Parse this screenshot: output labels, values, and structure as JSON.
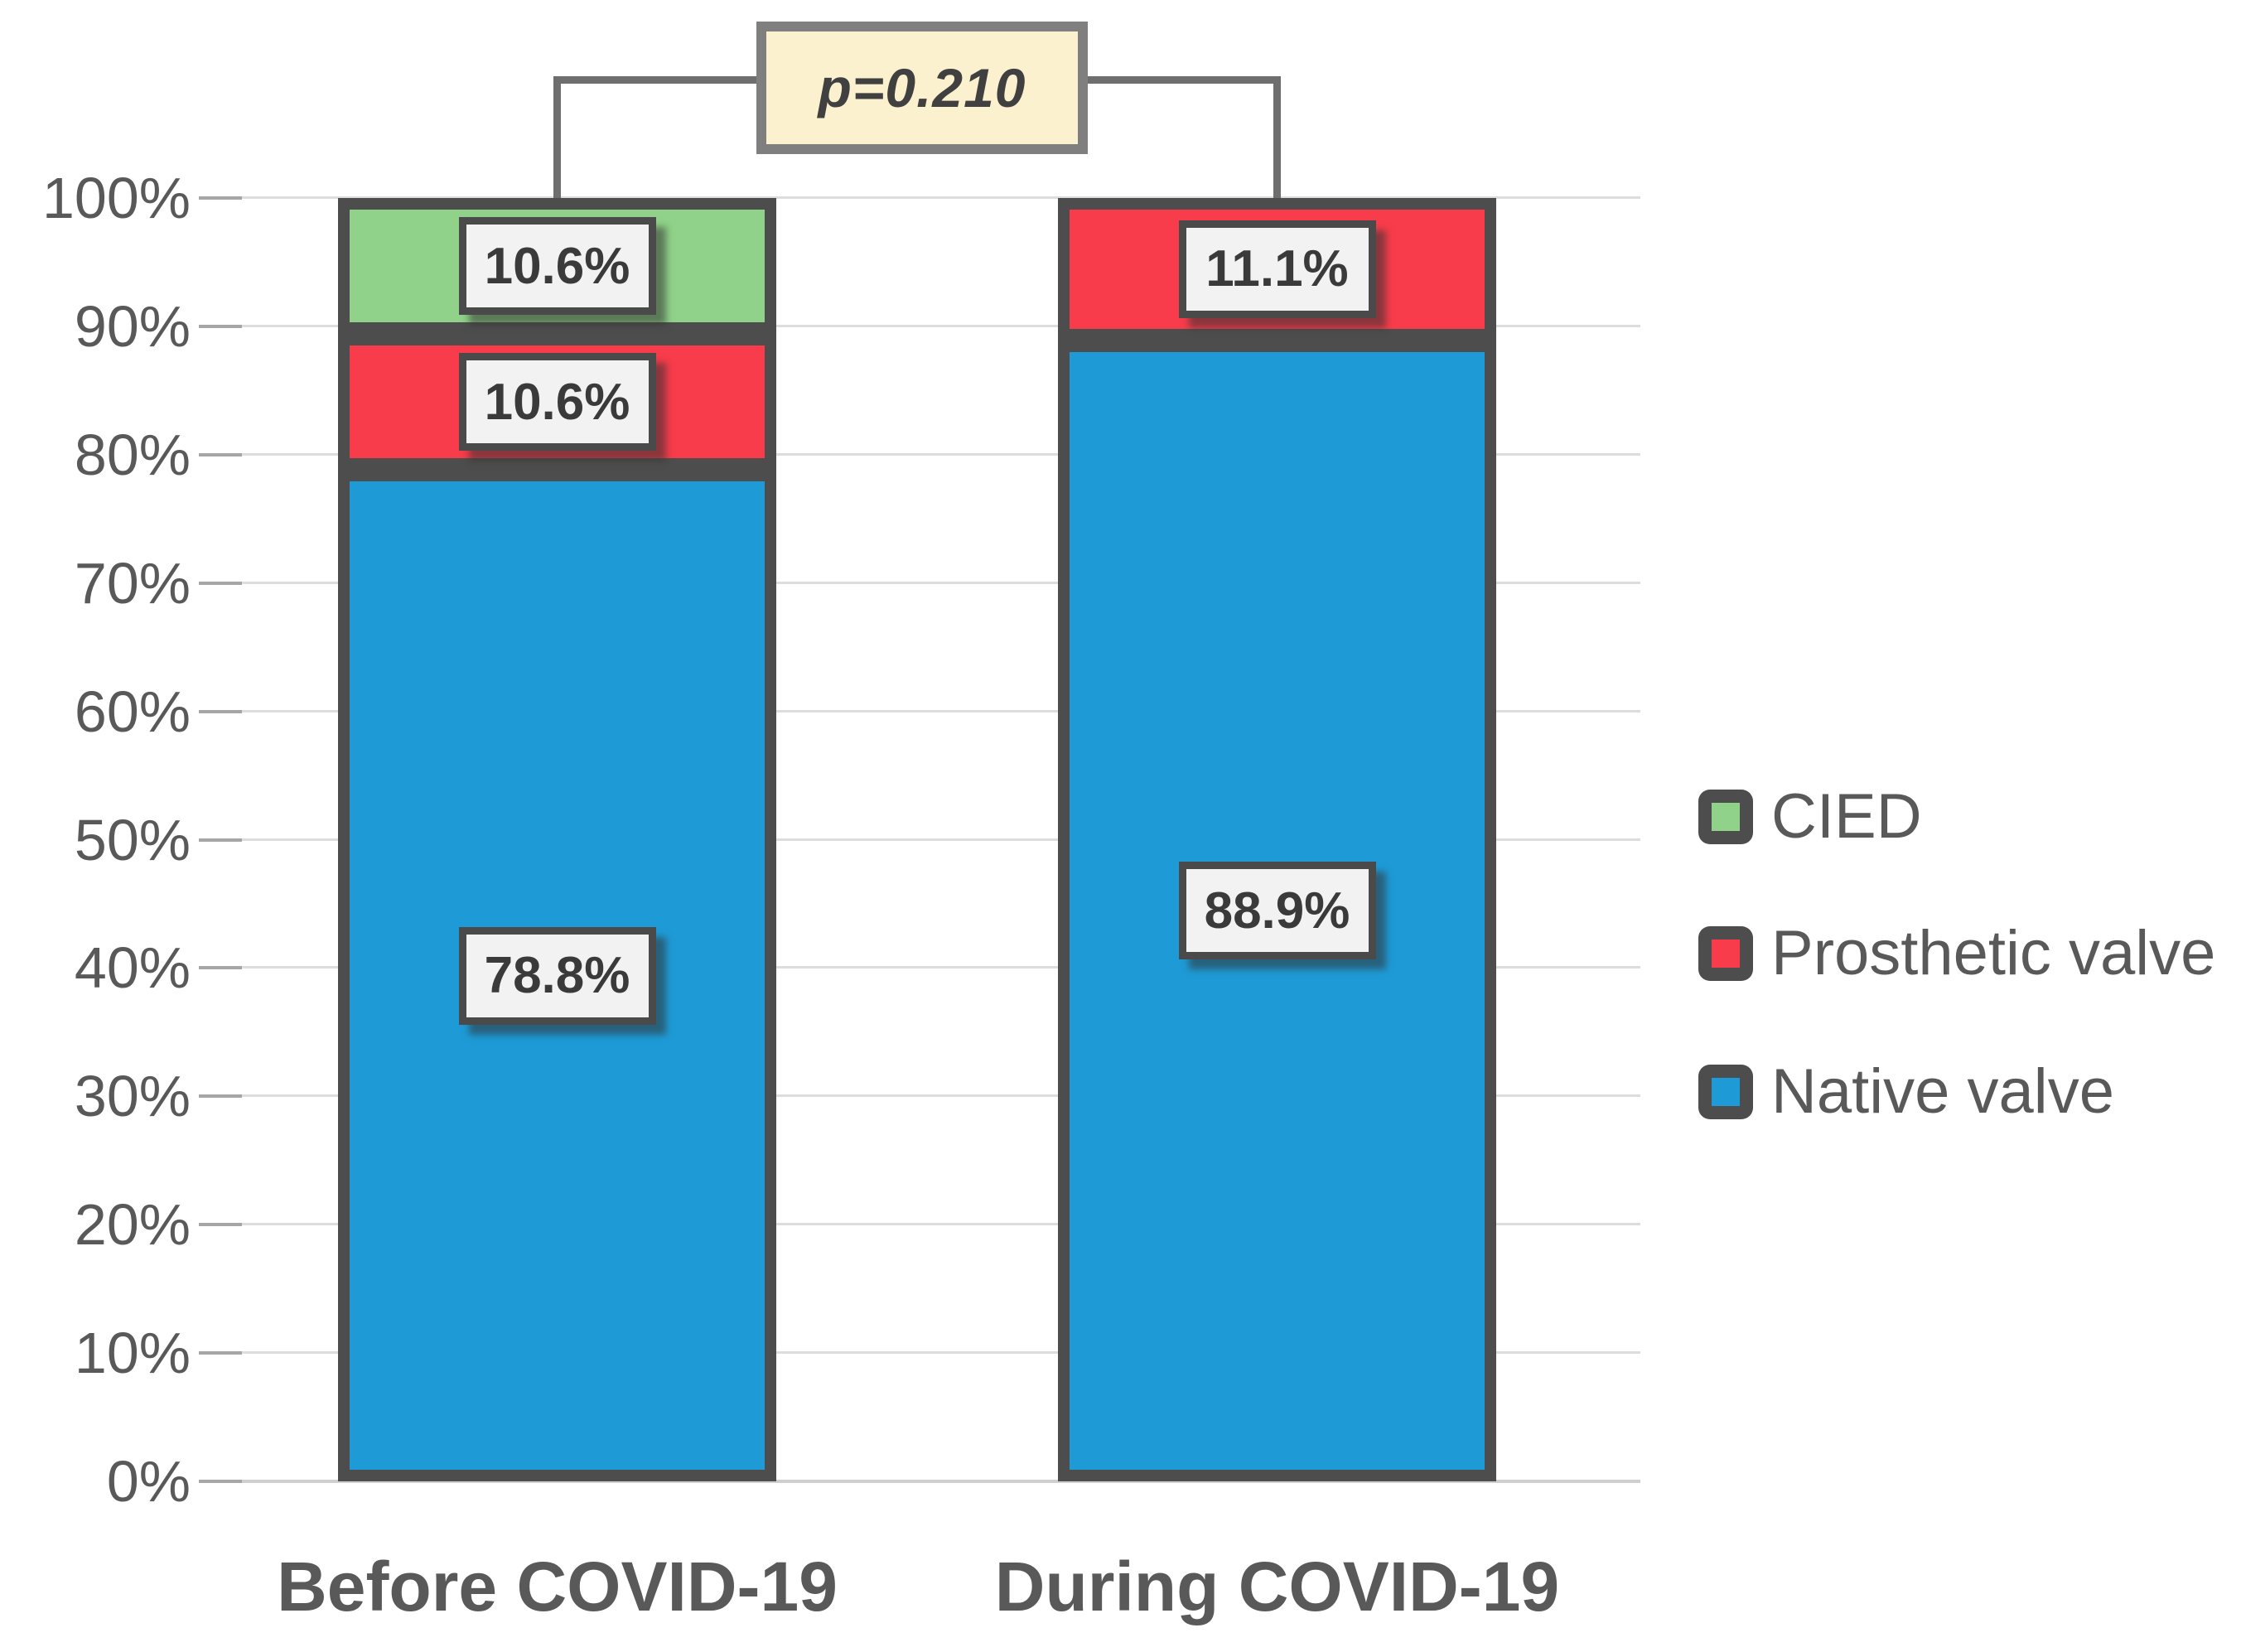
{
  "chart_data": {
    "type": "bar",
    "stacked": true,
    "unit": "%",
    "title": "",
    "xlabel": "",
    "ylabel": "",
    "categories": [
      "Before COVID-19",
      "During COVID-19"
    ],
    "series": [
      {
        "name": "Native valve",
        "color": "#1E9BD7",
        "values": [
          78.8,
          88.9
        ]
      },
      {
        "name": "Prosthetic valve",
        "color": "#F83C4B",
        "values": [
          10.6,
          11.1
        ]
      },
      {
        "name": "CIED",
        "color": "#90D289",
        "values": [
          10.6,
          0
        ]
      }
    ],
    "data_labels": [
      [
        "78.8%",
        "10.6%",
        "10.6%"
      ],
      [
        "88.9%",
        "11.1%",
        ""
      ]
    ],
    "y_ticks": [
      "0%",
      "10%",
      "20%",
      "30%",
      "40%",
      "50%",
      "60%",
      "70%",
      "80%",
      "90%",
      "100%"
    ],
    "ylim": [
      0,
      100
    ],
    "grid": true,
    "legend_position": "right",
    "legend": [
      "CIED",
      "Prosthetic valve",
      "Native valve"
    ],
    "annotation": {
      "label": "p=0.210"
    }
  },
  "styles": {
    "bar_border": "#4D4D4D",
    "label_box_bg": "#F2F2F2",
    "label_box_border": "#4A4A4A",
    "label_text": "#3A3A3A",
    "axis_text": "#595959",
    "gridline": "#DDDDDD",
    "bracket_line": "#6E6E6E",
    "p_box_bg": "#FCF1CF",
    "p_box_border": "#7F7F7F"
  }
}
